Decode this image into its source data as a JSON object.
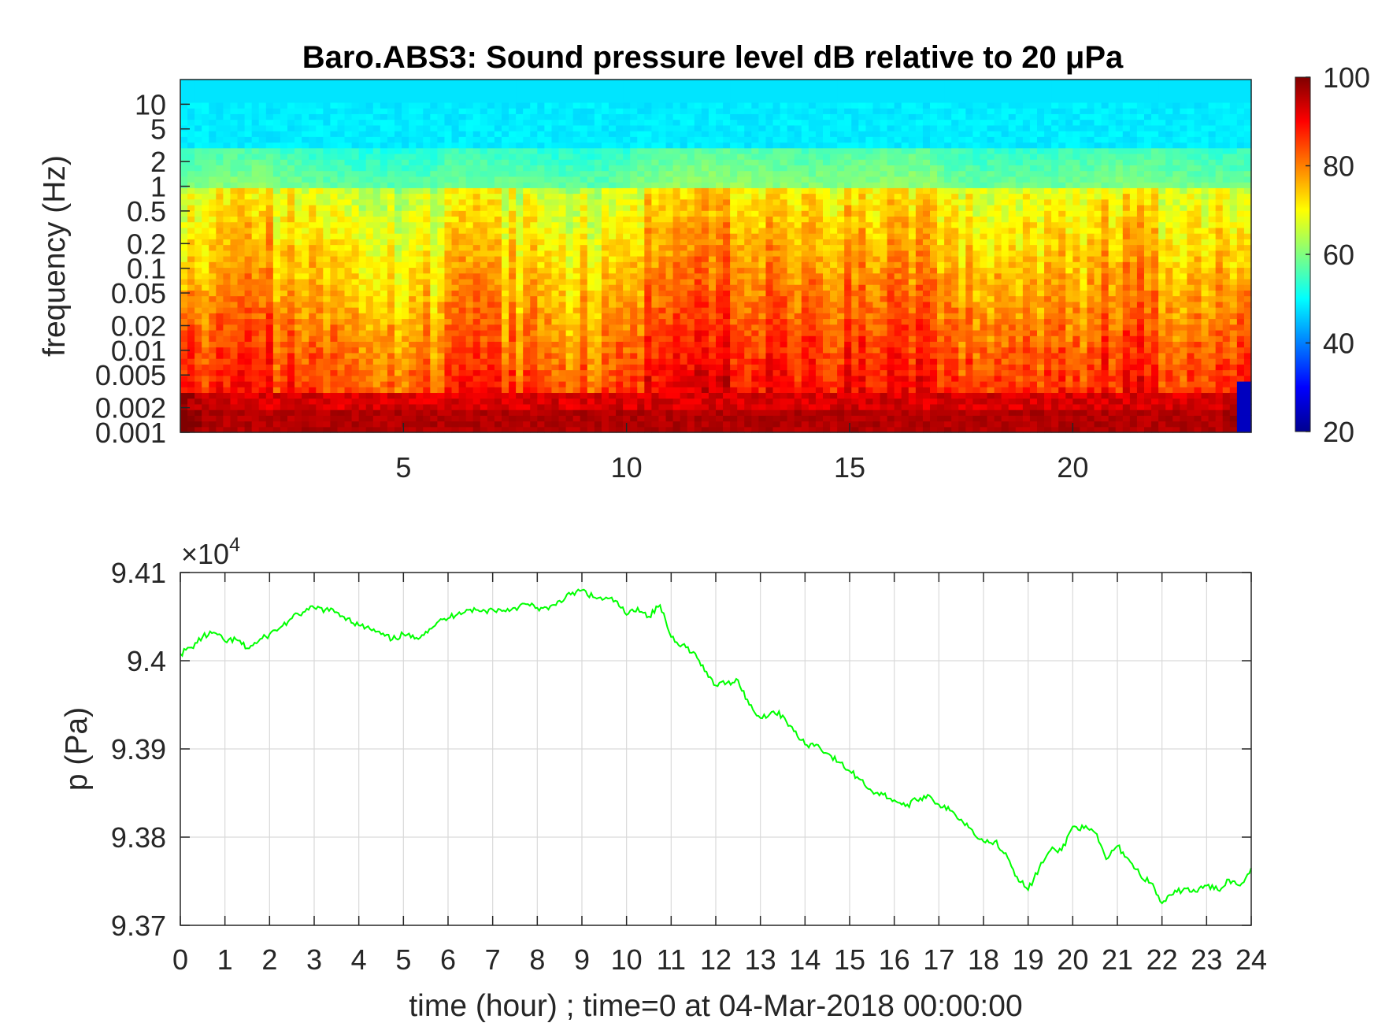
{
  "chart_data": [
    {
      "type": "heatmap",
      "title": "Baro.ABS3: Sound pressure level dB relative to 20 μPa",
      "ylabel": "frequency (Hz)",
      "xlabel": "",
      "x_range": [
        0,
        24
      ],
      "x_ticks": [
        5,
        10,
        15,
        20
      ],
      "x_tick_labels": [
        "5",
        "10",
        "15",
        "20"
      ],
      "y_scale": "log",
      "y_range": [
        0.001,
        20
      ],
      "y_ticks": [
        0.001,
        0.002,
        0.005,
        0.01,
        0.02,
        0.05,
        0.1,
        0.2,
        0.5,
        1,
        2,
        5,
        10
      ],
      "y_tick_labels": [
        "0.001",
        "0.002",
        "0.005",
        "0.01",
        "0.02",
        "0.05",
        "0.1",
        "0.2",
        "0.5",
        "1",
        "2",
        "5",
        "10"
      ],
      "colormap": "jet",
      "color_range": [
        20,
        100
      ],
      "colorbar_ticks": [
        100,
        80,
        60,
        40,
        20
      ],
      "colorbar_tick_labels": [
        "100",
        "80",
        "60",
        "40",
        "20"
      ],
      "grid": false
    },
    {
      "type": "line",
      "title": "",
      "xlabel": "time (hour) ; time=0 at 04-Mar-2018 00:00:00",
      "ylabel": "p (Pa)",
      "y_exponent_label": "×10",
      "y_exponent": "4",
      "xlim": [
        0,
        24
      ],
      "ylim": [
        9.37,
        9.41
      ],
      "x_ticks": [
        0,
        1,
        2,
        3,
        4,
        5,
        6,
        7,
        8,
        9,
        10,
        11,
        12,
        13,
        14,
        15,
        16,
        17,
        18,
        19,
        20,
        21,
        22,
        23,
        24
      ],
      "x_tick_labels": [
        "0",
        "1",
        "2",
        "3",
        "4",
        "5",
        "6",
        "7",
        "8",
        "9",
        "10",
        "11",
        "12",
        "13",
        "14",
        "15",
        "16",
        "17",
        "18",
        "19",
        "20",
        "21",
        "22",
        "23",
        "24"
      ],
      "y_ticks": [
        9.37,
        9.38,
        9.39,
        9.4,
        9.41
      ],
      "y_tick_labels": [
        "9.37",
        "9.38",
        "9.39",
        "9.4",
        "9.41"
      ],
      "grid": true,
      "line_color": "#00ff00",
      "series": [
        {
          "x": [
            0,
            0.25,
            0.5,
            0.75,
            1,
            1.25,
            1.5,
            1.75,
            2,
            2.25,
            2.5,
            2.75,
            3,
            3.25,
            3.5,
            3.75,
            4,
            4.25,
            4.5,
            4.75,
            5,
            5.25,
            5.5,
            5.75,
            6,
            6.25,
            6.5,
            6.75,
            7,
            7.25,
            7.5,
            7.75,
            8,
            8.25,
            8.5,
            8.75,
            9,
            9.25,
            9.5,
            9.75,
            10,
            10.25,
            10.5,
            10.75,
            11,
            11.25,
            11.5,
            11.75,
            12,
            12.25,
            12.5,
            12.75,
            13,
            13.25,
            13.5,
            13.75,
            14,
            14.25,
            14.5,
            14.75,
            15,
            15.25,
            15.5,
            15.75,
            16,
            16.25,
            16.5,
            16.75,
            17,
            17.25,
            17.5,
            17.75,
            18,
            18.25,
            18.5,
            18.75,
            19,
            19.25,
            19.5,
            19.75,
            20,
            20.25,
            20.5,
            20.75,
            21,
            21.25,
            21.5,
            21.75,
            22,
            22.25,
            22.5,
            22.75,
            23,
            23.25,
            23.5,
            23.75,
            24
          ],
          "y": [
            9.4008,
            9.4015,
            9.4027,
            9.4032,
            9.4022,
            9.4024,
            9.4014,
            9.4022,
            9.403,
            9.4038,
            9.4048,
            9.4055,
            9.406,
            9.4058,
            9.4055,
            9.4048,
            9.404,
            9.4036,
            9.403,
            9.4024,
            9.403,
            9.4025,
            9.4033,
            9.4043,
            9.4048,
            9.4055,
            9.4058,
            9.4056,
            9.4058,
            9.4057,
            9.406,
            9.4064,
            9.406,
            9.4058,
            9.4068,
            9.4075,
            9.408,
            9.4072,
            9.407,
            9.4068,
            9.4052,
            9.406,
            9.405,
            9.4063,
            9.4027,
            9.4018,
            9.401,
            9.3988,
            9.3972,
            9.3975,
            9.3978,
            9.395,
            9.3935,
            9.3942,
            9.3938,
            9.392,
            9.3905,
            9.3905,
            9.3895,
            9.3885,
            9.3875,
            9.3865,
            9.3852,
            9.3848,
            9.3842,
            9.3835,
            9.3842,
            9.3848,
            9.3837,
            9.383,
            9.382,
            9.3808,
            9.3795,
            9.3795,
            9.3782,
            9.3755,
            9.374,
            9.3765,
            9.3785,
            9.3785,
            9.3812,
            9.381,
            9.3805,
            9.3775,
            9.379,
            9.3775,
            9.3758,
            9.3748,
            9.3725,
            9.3735,
            9.3742,
            9.3738,
            9.3745,
            9.374,
            9.3752,
            9.3745,
            9.3765
          ]
        }
      ]
    }
  ]
}
